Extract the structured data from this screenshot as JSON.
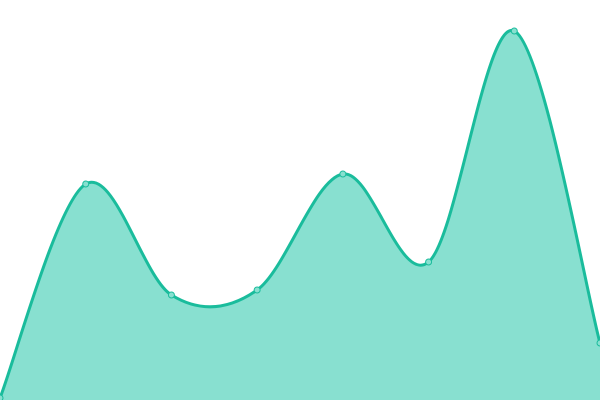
{
  "chart_data": {
    "type": "area",
    "curve": "smooth",
    "x": [
      0,
      1,
      2,
      3,
      4,
      5,
      6,
      7
    ],
    "values": [
      2,
      216,
      105,
      110,
      226,
      138,
      369,
      57
    ],
    "ylim": [
      0,
      400
    ],
    "grid": false,
    "axes_visible": false,
    "legend": "none",
    "colors": {
      "line": "#1abc9c",
      "fill": "#88e0d0",
      "marker_fill": "#88e0d0"
    }
  }
}
